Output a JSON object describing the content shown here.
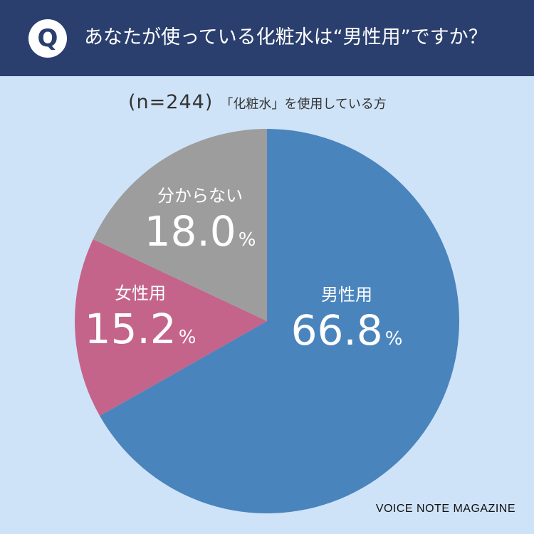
{
  "header": {
    "badge": "Q",
    "question": "あなたが使っている化粧水は“男性用”ですか？"
  },
  "subtitle": {
    "n": "(n=244)",
    "respondents": "「化粧水」を使用している方"
  },
  "chart_data": {
    "type": "pie",
    "start": "12 o'clock",
    "direction": "clockwise",
    "slices": [
      {
        "label": "男性用",
        "value": 66.8,
        "display": "66.8",
        "unit": "%",
        "color": "#4a84bd"
      },
      {
        "label": "女性用",
        "value": 15.2,
        "display": "15.2",
        "unit": "%",
        "color": "#c4648a"
      },
      {
        "label": "分からない",
        "value": 18.0,
        "display": "18.0",
        "unit": "%",
        "color": "#9d9d9d"
      }
    ]
  },
  "colors": {
    "background": "#cfe3f8",
    "header": "#2a3f6e"
  },
  "watermark": "VOICE NOTE MAGAZINE"
}
